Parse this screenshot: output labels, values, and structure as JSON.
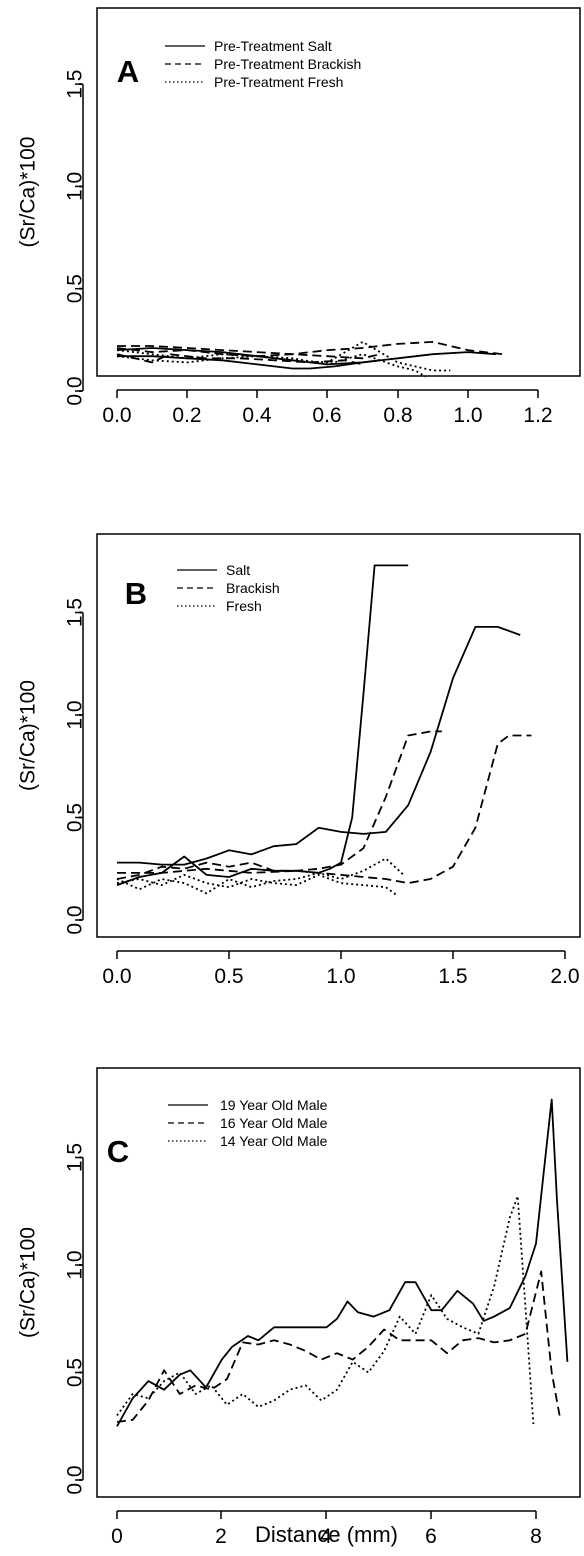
{
  "figure": {
    "ylabel": "(Sr/Ca)*100",
    "xlabel": "Distance (mm)"
  },
  "chart_data": [
    {
      "type": "line",
      "panel_label": "A",
      "ylabel": "(Sr/Ca)*100",
      "xlabel": "",
      "xlim": [
        0,
        1.3
      ],
      "ylim": [
        0,
        1.8
      ],
      "x_ticks": [
        "0.0",
        "0.2",
        "0.4",
        "0.6",
        "0.8",
        "1.0",
        "1.2"
      ],
      "y_ticks": [
        "0.0",
        "0.5",
        "1.0",
        "1.5"
      ],
      "legend_position": "top-left",
      "legend": [
        {
          "label": "Pre-Treatment Salt",
          "style": "solid"
        },
        {
          "label": "Pre-Treatment Brackish",
          "style": "dashed"
        },
        {
          "label": "Pre-Treatment Fresh",
          "style": "dotted"
        }
      ],
      "series": [
        {
          "style": "solid",
          "x": [
            0,
            0.1,
            0.2,
            0.3,
            0.4,
            0.5,
            0.6,
            0.7,
            0.8,
            0.9,
            1.0,
            1.08
          ],
          "y": [
            0.2,
            0.21,
            0.2,
            0.19,
            0.17,
            0.15,
            0.13,
            0.14,
            0.16,
            0.18,
            0.19,
            0.18
          ]
        },
        {
          "style": "solid",
          "x": [
            0,
            0.1,
            0.2,
            0.3,
            0.4,
            0.5,
            0.55,
            0.62,
            0.7,
            0.75
          ],
          "y": [
            0.17,
            0.17,
            0.16,
            0.15,
            0.13,
            0.11,
            0.11,
            0.12,
            0.14,
            0.15
          ]
        },
        {
          "style": "dashed",
          "x": [
            0,
            0.1,
            0.2,
            0.3,
            0.4,
            0.5,
            0.6,
            0.7,
            0.8,
            0.9,
            1.0,
            1.1
          ],
          "y": [
            0.22,
            0.22,
            0.21,
            0.2,
            0.19,
            0.18,
            0.2,
            0.21,
            0.23,
            0.24,
            0.2,
            0.18
          ]
        },
        {
          "style": "dashed",
          "x": [
            0,
            0.1,
            0.15,
            0.25,
            0.35,
            0.45,
            0.55,
            0.65,
            0.7
          ],
          "y": [
            0.18,
            0.14,
            0.18,
            0.16,
            0.16,
            0.15,
            0.14,
            0.15,
            0.13
          ]
        },
        {
          "style": "dashed",
          "x": [
            0,
            0.1,
            0.2,
            0.3,
            0.4,
            0.5,
            0.6,
            0.7,
            0.75
          ],
          "y": [
            0.21,
            0.19,
            0.2,
            0.18,
            0.17,
            0.18,
            0.17,
            0.16,
            0.18
          ]
        },
        {
          "style": "dotted",
          "x": [
            0,
            0.1,
            0.2,
            0.3,
            0.4,
            0.5,
            0.6,
            0.7,
            0.8,
            0.9,
            0.95
          ],
          "y": [
            0.17,
            0.15,
            0.14,
            0.16,
            0.17,
            0.15,
            0.14,
            0.24,
            0.14,
            0.1,
            0.1
          ]
        },
        {
          "style": "dotted",
          "x": [
            0,
            0.1,
            0.2,
            0.3,
            0.4,
            0.5,
            0.6,
            0.7,
            0.75,
            0.8,
            0.85,
            0.88
          ],
          "y": [
            0.2,
            0.18,
            0.16,
            0.18,
            0.17,
            0.16,
            0.13,
            0.18,
            0.15,
            0.12,
            0.1,
            0.07
          ]
        }
      ]
    },
    {
      "type": "line",
      "panel_label": "B",
      "ylabel": "(Sr/Ca)*100",
      "xlabel": "",
      "xlim": [
        0,
        2.0
      ],
      "ylim": [
        0,
        1.8
      ],
      "x_ticks": [
        "0.0",
        "0.5",
        "1.0",
        "1.5",
        "2.0"
      ],
      "y_ticks": [
        "0.0",
        "0.5",
        "1.0",
        "1.5"
      ],
      "legend_position": "top-left",
      "legend": [
        {
          "label": "Salt",
          "style": "solid"
        },
        {
          "label": "Brackish",
          "style": "dashed"
        },
        {
          "label": "Fresh",
          "style": "dotted"
        }
      ],
      "series": [
        {
          "style": "solid",
          "x": [
            0,
            0.1,
            0.2,
            0.3,
            0.4,
            0.5,
            0.6,
            0.7,
            0.8,
            0.9,
            0.95,
            1.0,
            1.05,
            1.1,
            1.15,
            1.18,
            1.3
          ],
          "y": [
            0.17,
            0.21,
            0.23,
            0.31,
            0.22,
            0.21,
            0.25,
            0.24,
            0.24,
            0.23,
            0.25,
            0.28,
            0.5,
            1.1,
            1.73,
            1.73,
            1.73
          ]
        },
        {
          "style": "solid",
          "x": [
            0,
            0.1,
            0.2,
            0.3,
            0.4,
            0.5,
            0.6,
            0.7,
            0.8,
            0.9,
            1.0,
            1.1,
            1.2,
            1.3,
            1.4,
            1.5,
            1.6,
            1.7,
            1.8
          ],
          "y": [
            0.28,
            0.28,
            0.27,
            0.27,
            0.3,
            0.34,
            0.32,
            0.36,
            0.37,
            0.45,
            0.43,
            0.42,
            0.43,
            0.56,
            0.82,
            1.18,
            1.43,
            1.43,
            1.39
          ]
        },
        {
          "style": "dashed",
          "x": [
            0,
            0.1,
            0.2,
            0.3,
            0.4,
            0.5,
            0.6,
            0.7,
            0.8,
            0.9,
            1.0,
            1.1,
            1.2,
            1.3,
            1.4,
            1.45
          ],
          "y": [
            0.2,
            0.22,
            0.26,
            0.25,
            0.28,
            0.26,
            0.28,
            0.24,
            0.24,
            0.25,
            0.27,
            0.35,
            0.6,
            0.9,
            0.92,
            0.92
          ]
        },
        {
          "style": "dashed",
          "x": [
            0,
            0.2,
            0.4,
            0.6,
            0.8,
            1.0,
            1.1,
            1.2,
            1.3,
            1.4,
            1.5,
            1.6,
            1.7,
            1.75,
            1.85
          ],
          "y": [
            0.23,
            0.23,
            0.25,
            0.23,
            0.24,
            0.22,
            0.21,
            0.2,
            0.18,
            0.2,
            0.26,
            0.45,
            0.86,
            0.9,
            0.9
          ]
        },
        {
          "style": "dotted",
          "x": [
            0,
            0.1,
            0.2,
            0.3,
            0.4,
            0.5,
            0.6,
            0.7,
            0.8,
            0.9,
            1.0,
            1.1,
            1.2,
            1.28
          ],
          "y": [
            0.2,
            0.15,
            0.2,
            0.18,
            0.13,
            0.2,
            0.16,
            0.19,
            0.2,
            0.23,
            0.2,
            0.24,
            0.3,
            0.22
          ]
        },
        {
          "style": "dotted",
          "x": [
            0,
            0.1,
            0.2,
            0.3,
            0.4,
            0.5,
            0.6,
            0.7,
            0.8,
            0.9,
            1.0,
            1.1,
            1.2,
            1.25
          ],
          "y": [
            0.18,
            0.2,
            0.17,
            0.22,
            0.18,
            0.16,
            0.2,
            0.18,
            0.17,
            0.22,
            0.18,
            0.17,
            0.16,
            0.12
          ]
        }
      ]
    },
    {
      "type": "line",
      "panel_label": "C",
      "ylabel": "(Sr/Ca)*100",
      "xlabel": "Distance (mm)",
      "xlim": [
        0,
        8.8
      ],
      "ylim": [
        0,
        1.8
      ],
      "x_ticks": [
        "0",
        "2",
        "4",
        "6",
        "8"
      ],
      "y_ticks": [
        "0.0",
        "0.5",
        "1.0",
        "1.5"
      ],
      "legend_position": "top-left",
      "legend": [
        {
          "label": "19 Year Old Male",
          "style": "solid"
        },
        {
          "label": "16 Year Old Male",
          "style": "dashed"
        },
        {
          "label": "14 Year Old Male",
          "style": "dotted"
        }
      ],
      "series": [
        {
          "style": "solid",
          "x": [
            0,
            0.3,
            0.6,
            0.9,
            1.2,
            1.4,
            1.7,
            2.0,
            2.2,
            2.5,
            2.7,
            3.0,
            3.3,
            3.6,
            4.0,
            4.2,
            4.4,
            4.6,
            4.9,
            5.2,
            5.5,
            5.7,
            6.0,
            6.2,
            6.5,
            6.8,
            7.0,
            7.2,
            7.5,
            7.8,
            8.0,
            8.2,
            8.3,
            8.4,
            8.6
          ],
          "y": [
            0.25,
            0.38,
            0.46,
            0.42,
            0.49,
            0.51,
            0.43,
            0.56,
            0.62,
            0.67,
            0.65,
            0.71,
            0.71,
            0.71,
            0.71,
            0.75,
            0.83,
            0.78,
            0.76,
            0.79,
            0.92,
            0.92,
            0.79,
            0.79,
            0.88,
            0.82,
            0.74,
            0.76,
            0.8,
            0.95,
            1.1,
            1.55,
            1.77,
            1.3,
            0.55
          ]
        },
        {
          "style": "dashed",
          "x": [
            0,
            0.3,
            0.6,
            0.9,
            1.2,
            1.5,
            1.8,
            2.1,
            2.4,
            2.7,
            3.0,
            3.3,
            3.6,
            3.9,
            4.2,
            4.5,
            4.8,
            5.1,
            5.4,
            5.7,
            6.0,
            6.3,
            6.6,
            6.9,
            7.2,
            7.5,
            7.8,
            8.1,
            8.3,
            8.45
          ],
          "y": [
            0.27,
            0.28,
            0.37,
            0.51,
            0.4,
            0.44,
            0.42,
            0.47,
            0.64,
            0.63,
            0.65,
            0.63,
            0.6,
            0.56,
            0.59,
            0.56,
            0.62,
            0.7,
            0.65,
            0.65,
            0.65,
            0.59,
            0.65,
            0.66,
            0.64,
            0.65,
            0.68,
            0.97,
            0.5,
            0.3
          ]
        },
        {
          "style": "dotted",
          "x": [
            0,
            0.3,
            0.6,
            0.9,
            1.2,
            1.5,
            1.8,
            2.1,
            2.4,
            2.7,
            3.0,
            3.3,
            3.6,
            3.9,
            4.2,
            4.5,
            4.8,
            5.1,
            5.4,
            5.7,
            6.0,
            6.3,
            6.6,
            6.9,
            7.2,
            7.5,
            7.65,
            7.8,
            7.95
          ],
          "y": [
            0.3,
            0.4,
            0.38,
            0.46,
            0.5,
            0.4,
            0.44,
            0.35,
            0.4,
            0.34,
            0.37,
            0.42,
            0.44,
            0.37,
            0.42,
            0.55,
            0.5,
            0.6,
            0.76,
            0.68,
            0.86,
            0.75,
            0.71,
            0.68,
            0.9,
            1.22,
            1.32,
            0.8,
            0.26
          ]
        }
      ]
    }
  ]
}
